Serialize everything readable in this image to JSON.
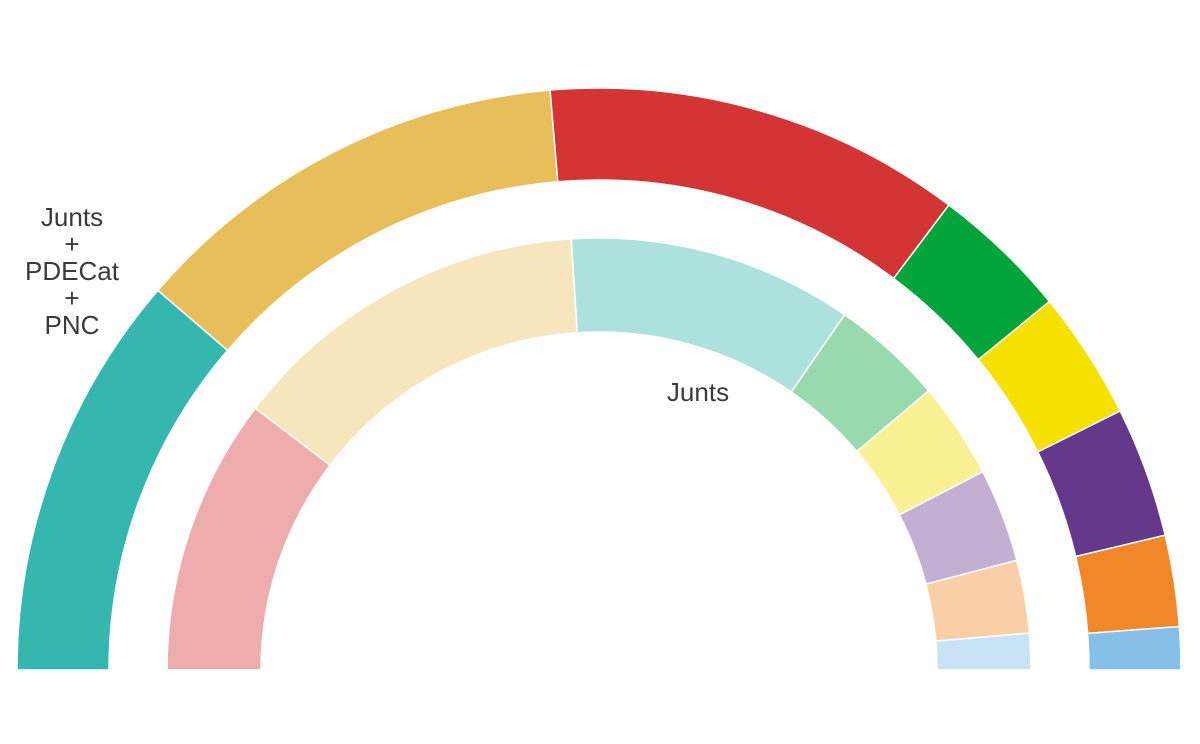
{
  "chart_data": {
    "type": "pie",
    "shape": "semicircle-donut",
    "rings": [
      {
        "name": "outer",
        "segments": [
          {
            "label": "Junts\n+\nPDECat\n+\nPNC",
            "value": 22.8,
            "color": "#35B6AF",
            "show_label": true
          },
          {
            "label": "",
            "value": 24.9,
            "color": "#E8BE5A",
            "show_label": false
          },
          {
            "label": "",
            "value": 23.4,
            "color": "#D33535",
            "show_label": false
          },
          {
            "label": "",
            "value": 7.7,
            "color": "#00A43A",
            "show_label": false
          },
          {
            "label": "",
            "value": 7.2,
            "color": "#F5E000",
            "show_label": false
          },
          {
            "label": "",
            "value": 7.3,
            "color": "#64388A",
            "show_label": false
          },
          {
            "label": "",
            "value": 5.1,
            "color": "#F0882A",
            "show_label": false
          },
          {
            "label": "",
            "value": 2.4,
            "color": "#86BFE7",
            "show_label": false
          }
        ]
      },
      {
        "name": "inner",
        "segments": [
          {
            "label": "",
            "value": 21.3,
            "color": "#EEADAD",
            "show_label": false
          },
          {
            "label": "",
            "value": 28.0,
            "color": "#F6E5BD",
            "show_label": false
          },
          {
            "label": "Junts",
            "value": 21.9,
            "color": "#ADE1DD",
            "show_label": true
          },
          {
            "label": "",
            "value": 8.6,
            "color": "#99D9AE",
            "show_label": false
          },
          {
            "label": "",
            "value": 7.4,
            "color": "#F9F194",
            "show_label": false
          },
          {
            "label": "",
            "value": 7.2,
            "color": "#C3AFD1",
            "show_label": false
          },
          {
            "label": "",
            "value": 5.6,
            "color": "#F9CFA8",
            "show_label": false
          },
          {
            "label": "",
            "value": 2.8,
            "color": "#CAE3F4",
            "show_label": false
          }
        ]
      }
    ]
  }
}
